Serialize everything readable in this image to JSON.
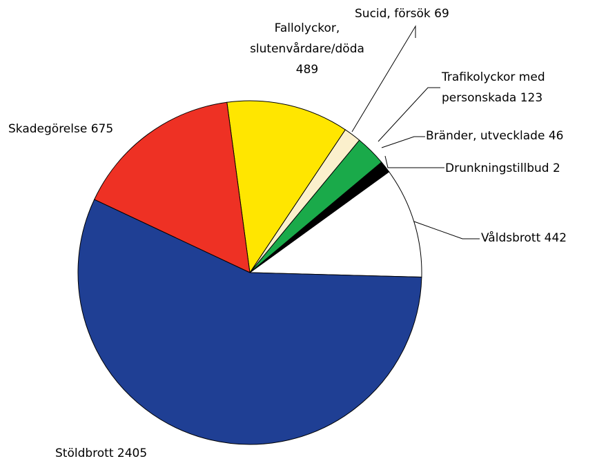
{
  "chart_data": {
    "type": "pie",
    "categories": [
      "Våldsbrott",
      "Drunkningstillbud",
      "Bränder, utvecklade",
      "Trafikolyckor med personskada",
      "Sucid, försök",
      "Fallolyckor, slutenvårdare/döda",
      "Skadegörelse",
      "Stöldbrott"
    ],
    "values": [
      442,
      2,
      46,
      123,
      69,
      489,
      675,
      2405
    ],
    "colors": [
      "#ffffff",
      "#000000",
      "#000000",
      "#1aaa4a",
      "#fbf0cc",
      "#ffe600",
      "#ee3124",
      "#1f3f94"
    ]
  }
}
